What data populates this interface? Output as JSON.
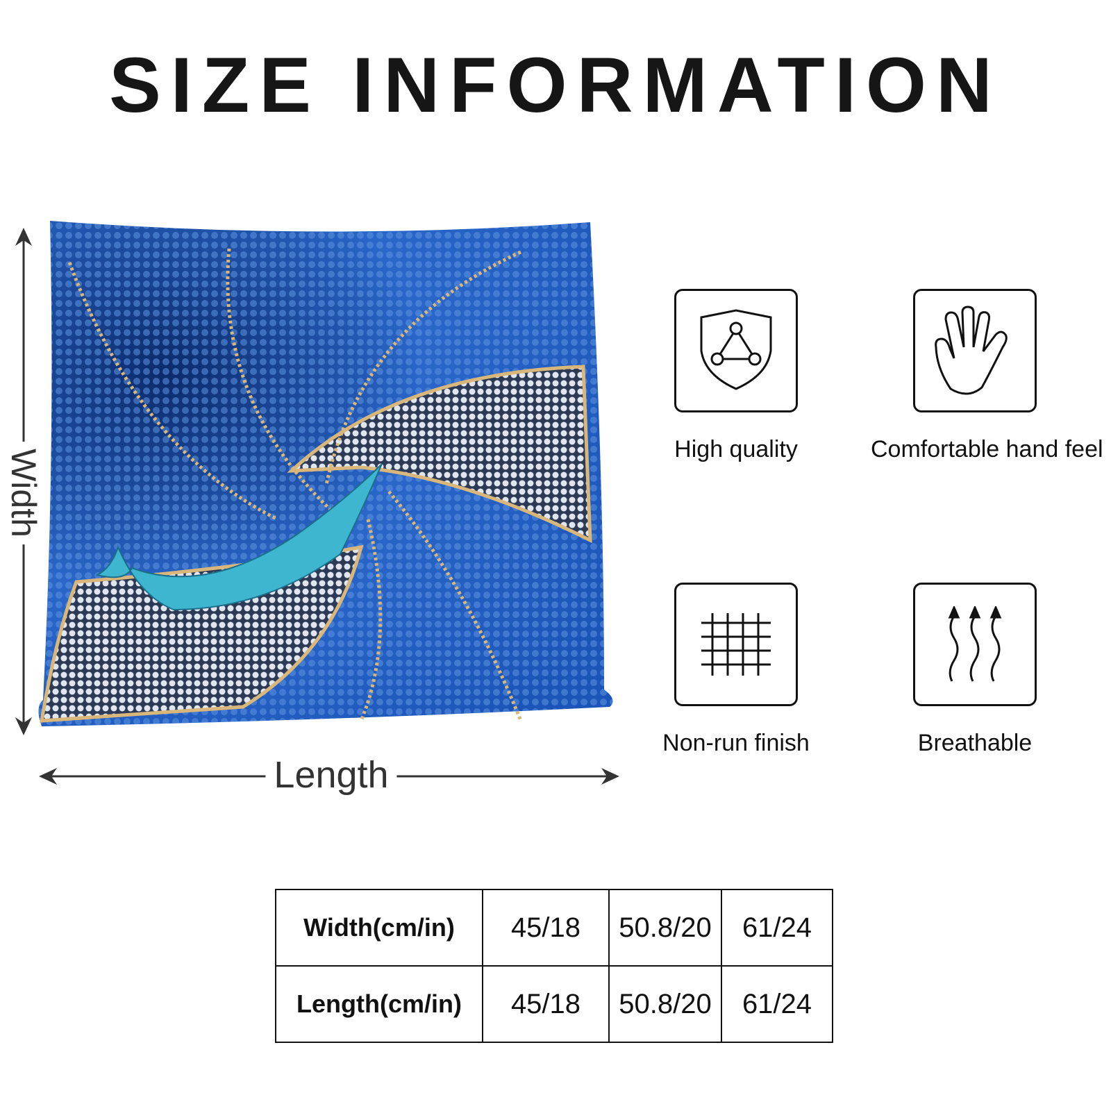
{
  "title": "SIZE INFORMATION",
  "dimensions": {
    "width_label": "Width",
    "length_label": "Length"
  },
  "features": [
    {
      "label": "High quality",
      "icon": "shield-icon"
    },
    {
      "label": "Comfortable hand feel",
      "icon": "hand-icon"
    },
    {
      "label": "Non-run finish",
      "icon": "grid-icon"
    },
    {
      "label": "Breathable",
      "icon": "wavy-arrows-icon"
    }
  ],
  "size_table": {
    "rows": [
      {
        "header": "Width(cm/in)",
        "values": [
          "45/18",
          "50.8/20",
          "61/24"
        ]
      },
      {
        "header": "Length(cm/in)",
        "values": [
          "45/18",
          "50.8/20",
          "61/24"
        ]
      }
    ]
  },
  "colors": {
    "pillow_blue": "#1f5fc4",
    "pillow_dark": "#0b2a6b",
    "band_light": "#c9d3e2",
    "whale": "#3fb6cf",
    "gold_line": "#d9b77a"
  }
}
